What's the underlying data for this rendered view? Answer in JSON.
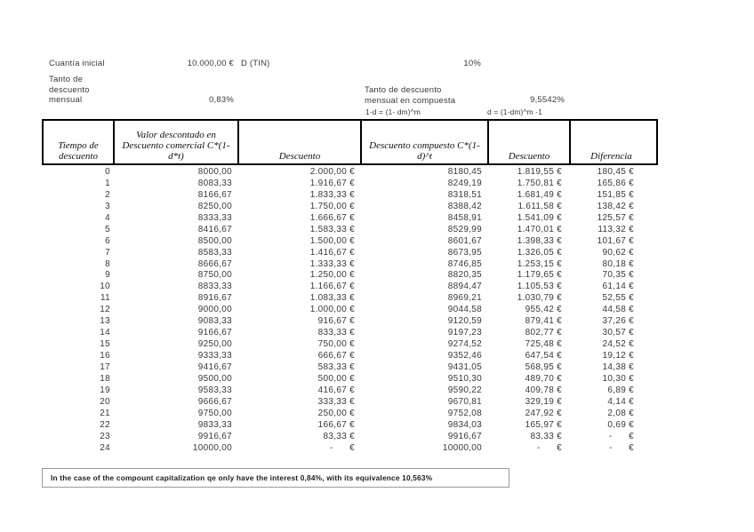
{
  "top": {
    "cuantia_label": "Cuantía inicial",
    "cuantia_value": "10.000,00 €",
    "dtin_label": "D (TIN)",
    "dtin_value": "10%",
    "tanto_mensual_label": "Tanto de\ndescuento\nmensual",
    "tanto_mensual_value": "0,83%",
    "tanto_compuesta_label": "Tanto de descuento\nmensual  en compuesta",
    "tanto_compuesta_value": "9,5542%",
    "formula_1": "1-d = (1- dm)^m",
    "formula_2": "d = (1-dm)^m -1"
  },
  "table": {
    "headers": [
      "Tiempo de descuento",
      "Valor descontado en Descuento comercial C*(1-d*t)",
      "Descuento",
      "Descuento compuesto C*(1-d)^t",
      "Descuento",
      "Diferencia"
    ],
    "rows": [
      [
        "0",
        "8000,00",
        "2.000,00 €",
        "8180,45",
        "1.819,55 €",
        "180,45 €"
      ],
      [
        "1",
        "8083,33",
        "1.916,67 €",
        "8249,19",
        "1.750,81 €",
        "165,86 €"
      ],
      [
        "2",
        "8166,67",
        "1.833,33 €",
        "8318,51",
        "1.681,49 €",
        "151,85 €"
      ],
      [
        "3",
        "8250,00",
        "1.750,00 €",
        "8388,42",
        "1.611,58 €",
        "138,42 €"
      ],
      [
        "4",
        "8333,33",
        "1.666,67 €",
        "8458,91",
        "1.541,09 €",
        "125,57 €"
      ],
      [
        "5",
        "8416,67",
        "1.583,33 €",
        "8529,99",
        "1.470,01 €",
        "113,32 €"
      ],
      [
        "6",
        "8500,00",
        "1.500,00 €",
        "8601,67",
        "1.398,33 €",
        "101,67 €"
      ],
      [
        "7",
        "8583,33",
        "1.416,67 €",
        "8673,95",
        "1.326,05 €",
        "90,62 €"
      ],
      [
        "8",
        "8666,67",
        "1.333,33 €",
        "8746,85",
        "1.253,15 €",
        "80,18 €"
      ],
      [
        "9",
        "8750,00",
        "1.250,00 €",
        "8820,35",
        "1.179,65 €",
        "70,35 €"
      ],
      [
        "10",
        "8833,33",
        "1.166,67 €",
        "8894,47",
        "1.105,53 €",
        "61,14 €"
      ],
      [
        "11",
        "8916,67",
        "1.083,33 €",
        "8969,21",
        "1.030,79 €",
        "52,55 €"
      ],
      [
        "12",
        "9000,00",
        "1.000,00 €",
        "9044,58",
        "955,42 €",
        "44,58 €"
      ],
      [
        "13",
        "9083,33",
        "916,67 €",
        "9120,59",
        "879,41 €",
        "37,26 €"
      ],
      [
        "14",
        "9166,67",
        "833,33 €",
        "9197,23",
        "802,77 €",
        "30,57 €"
      ],
      [
        "15",
        "9250,00",
        "750,00 €",
        "9274,52",
        "725,48 €",
        "24,52 €"
      ],
      [
        "16",
        "9333,33",
        "666,67 €",
        "9352,46",
        "647,54 €",
        "19,12 €"
      ],
      [
        "17",
        "9416,67",
        "583,33 €",
        "9431,05",
        "568,95 €",
        "14,38 €"
      ],
      [
        "18",
        "9500,00",
        "500,00 €",
        "9510,30",
        "489,70 €",
        "10,30 €"
      ],
      [
        "19",
        "9583,33",
        "416,67 €",
        "9590,22",
        "409,78 €",
        "6,89 €"
      ],
      [
        "20",
        "9666,67",
        "333,33 €",
        "9670,81",
        "329,19 €",
        "4,14 €"
      ],
      [
        "21",
        "9750,00",
        "250,00 €",
        "9752,08",
        "247,92 €",
        "2,08 €"
      ],
      [
        "22",
        "9833,33",
        "166,67 €",
        "9834,03",
        "165,97 €",
        "0,69 €"
      ],
      [
        "23",
        "9916,67",
        "83,33 €",
        "9916,67",
        "83,33 €",
        "-      €"
      ],
      [
        "24",
        "10000,00",
        "-      €",
        "10000,00",
        "-      €",
        "-      €"
      ]
    ]
  },
  "note": "In the case of the compount capitalization qe only have the interest 0,84%, with its equivalence 10,563%"
}
